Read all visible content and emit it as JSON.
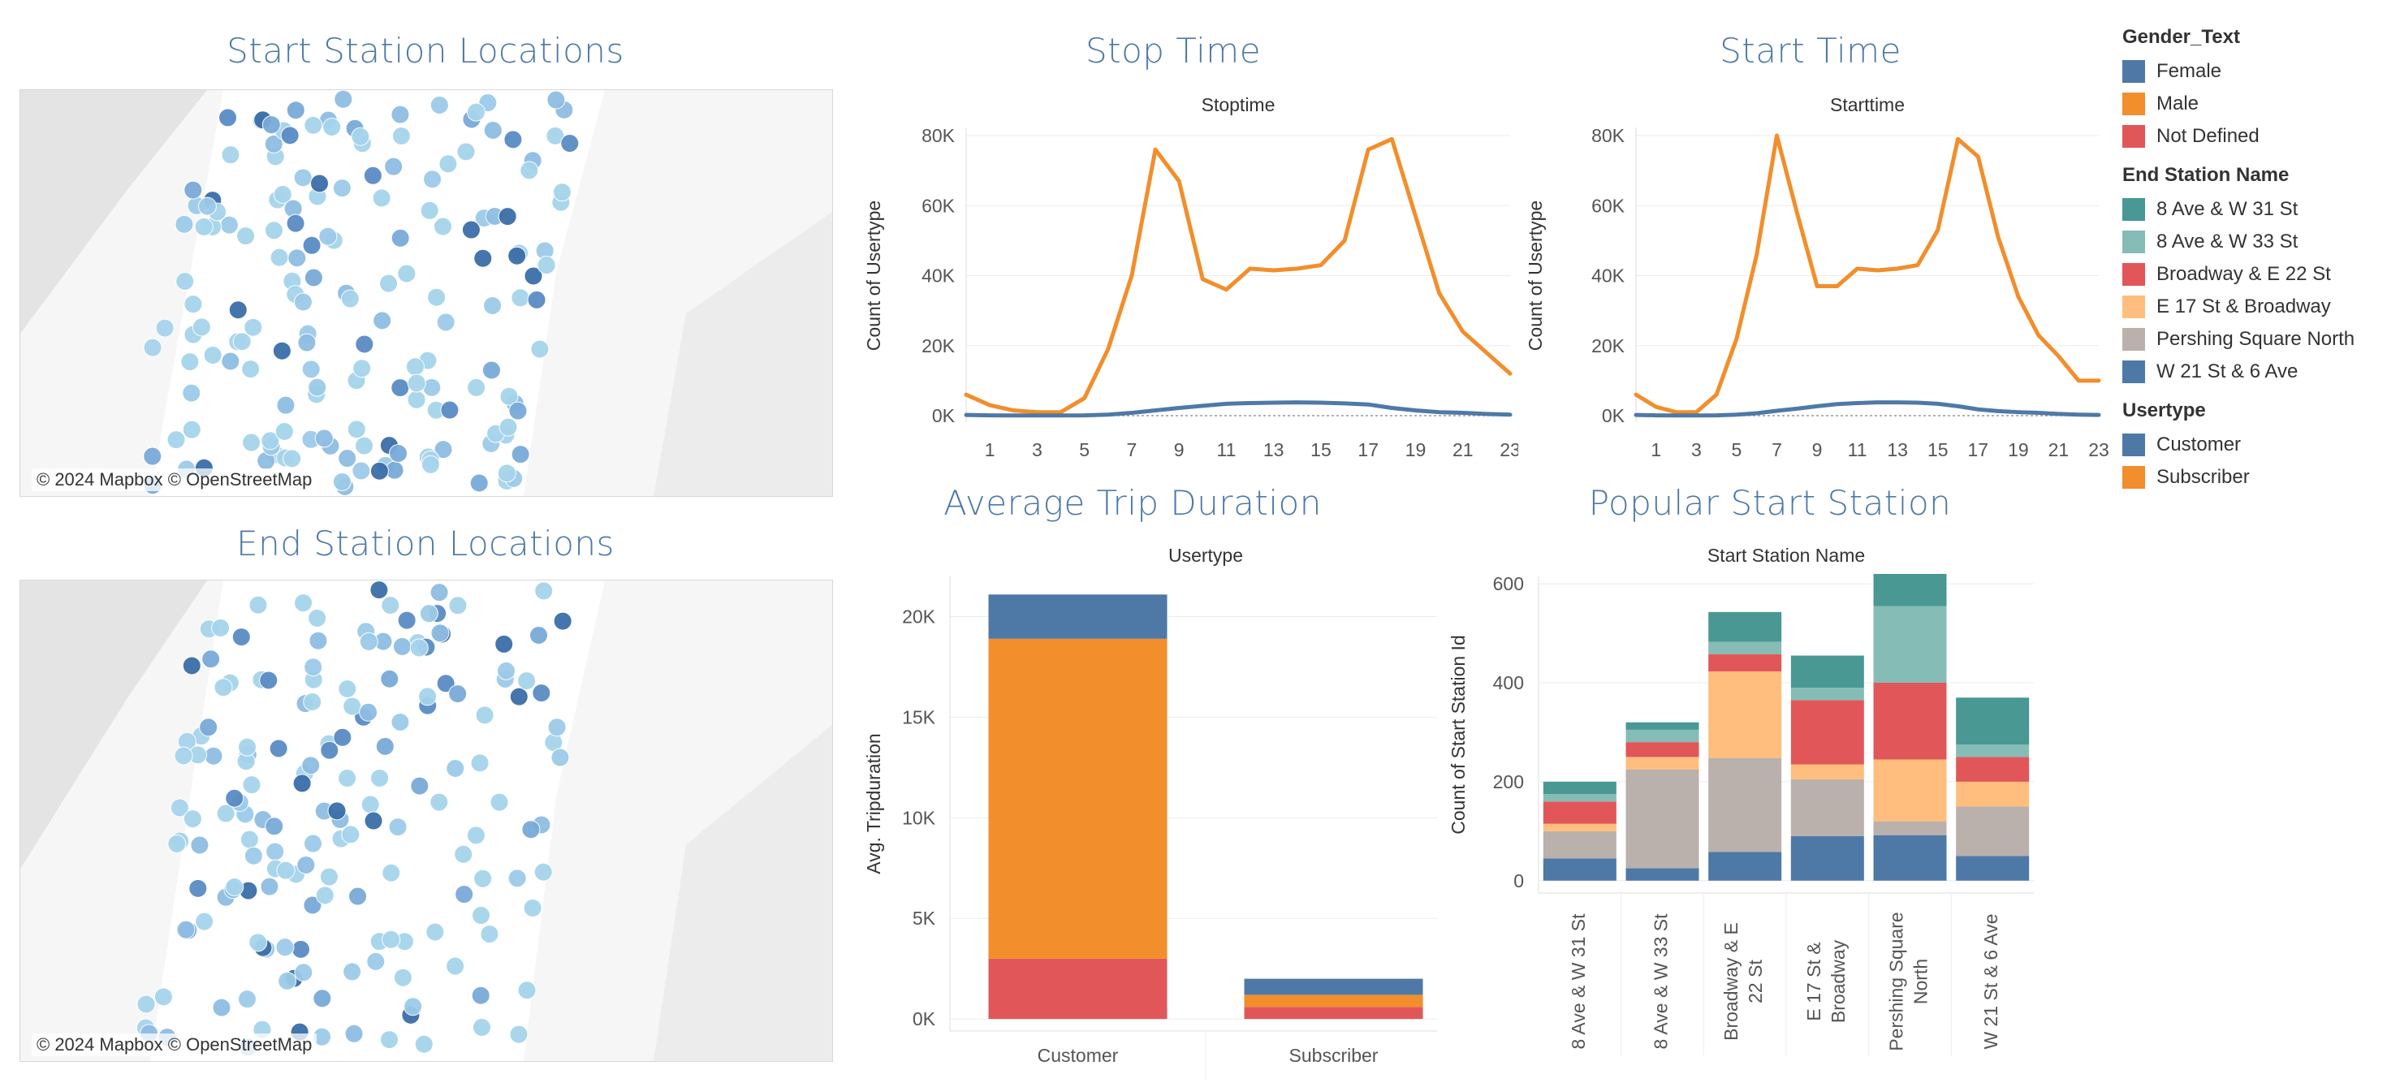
{
  "sheets": {
    "start_map_title": "Start Station Locations",
    "end_map_title": "End Station Locations",
    "stop_time_title": "Stop Time",
    "start_time_title": "Start Time",
    "avg_trip_title": "Average Trip Duration",
    "popular_title": "Popular Start Station"
  },
  "map_attribution": "© 2024 Mapbox © OpenStreetMap",
  "legend": {
    "gender": {
      "title": "Gender_Text",
      "items": [
        {
          "label": "Female",
          "color": "#4e79a7"
        },
        {
          "label": "Male",
          "color": "#f28e2b"
        },
        {
          "label": "Not Defined",
          "color": "#e15759"
        }
      ]
    },
    "end_station": {
      "title": "End Station Name",
      "items": [
        {
          "label": "8 Ave & W 31 St",
          "color": "#499894"
        },
        {
          "label": "8 Ave & W 33 St",
          "color": "#86bcb6"
        },
        {
          "label": "Broadway & E 22 St",
          "color": "#e15759"
        },
        {
          "label": "E 17 St & Broadway",
          "color": "#ffbe7d"
        },
        {
          "label": "Pershing Square North",
          "color": "#bab0ac"
        },
        {
          "label": "W 21 St & 6 Ave",
          "color": "#4e79a7"
        }
      ]
    },
    "usertype": {
      "title": "Usertype",
      "items": [
        {
          "label": "Customer",
          "color": "#4e79a7"
        },
        {
          "label": "Subscriber",
          "color": "#f28e2b"
        }
      ]
    }
  },
  "chart_data": [
    {
      "id": "stoptime",
      "type": "line",
      "title": "Stoptime",
      "xlabel": "",
      "ylabel": "Count of Usertype",
      "x": [
        0,
        1,
        2,
        3,
        4,
        5,
        6,
        7,
        8,
        9,
        10,
        11,
        12,
        13,
        14,
        15,
        16,
        17,
        18,
        19,
        20,
        21,
        22,
        23
      ],
      "xticks": [
        1,
        3,
        5,
        7,
        9,
        11,
        13,
        15,
        17,
        19,
        21,
        23
      ],
      "ylim": [
        0,
        80000
      ],
      "yticks": [
        0,
        20000,
        40000,
        60000,
        80000
      ],
      "ytick_labels": [
        "0K",
        "20K",
        "40K",
        "60K",
        "80K"
      ],
      "series": [
        {
          "color": "#f28e2b",
          "values": [
            6000,
            3000,
            1500,
            1000,
            1000,
            5000,
            19000,
            40000,
            76000,
            67000,
            39000,
            36000,
            42000,
            41500,
            42000,
            43000,
            50000,
            76000,
            79000,
            57000,
            35000,
            24000,
            18000,
            12000
          ]
        },
        {
          "color": "#4e79a7",
          "values": [
            200,
            100,
            50,
            50,
            50,
            100,
            300,
            800,
            1500,
            2200,
            2800,
            3400,
            3600,
            3700,
            3800,
            3700,
            3500,
            3200,
            2200,
            1500,
            1000,
            800,
            500,
            300
          ]
        }
      ]
    },
    {
      "id": "starttime",
      "type": "line",
      "title": "Starttime",
      "xlabel": "",
      "ylabel": "Count of Usertype",
      "x": [
        0,
        1,
        2,
        3,
        4,
        5,
        6,
        7,
        8,
        9,
        10,
        11,
        12,
        13,
        14,
        15,
        16,
        17,
        18,
        19,
        20,
        21,
        22,
        23
      ],
      "xticks": [
        1,
        3,
        5,
        7,
        9,
        11,
        13,
        15,
        17,
        19,
        21,
        23
      ],
      "ylim": [
        0,
        80000
      ],
      "yticks": [
        0,
        20000,
        40000,
        60000,
        80000
      ],
      "ytick_labels": [
        "0K",
        "20K",
        "40K",
        "60K",
        "80K"
      ],
      "series": [
        {
          "color": "#f28e2b",
          "values": [
            6000,
            2500,
            1000,
            1000,
            6000,
            22000,
            46000,
            80000,
            58000,
            37000,
            37000,
            42000,
            41500,
            42000,
            43000,
            53000,
            79000,
            74000,
            51000,
            34000,
            23000,
            17000,
            10000,
            10000
          ]
        },
        {
          "color": "#4e79a7",
          "values": [
            200,
            100,
            50,
            50,
            100,
            300,
            700,
            1400,
            2000,
            2700,
            3300,
            3600,
            3800,
            3800,
            3700,
            3400,
            2700,
            1800,
            1300,
            1000,
            800,
            500,
            300,
            200
          ]
        }
      ]
    },
    {
      "id": "avgtrip",
      "type": "bar",
      "stacked": true,
      "title": "Usertype",
      "xlabel": "",
      "ylabel": "Avg. Tripduration",
      "categories": [
        "Customer",
        "Subscriber"
      ],
      "ylim": [
        -600,
        22000
      ],
      "yticks": [
        0,
        5000,
        10000,
        15000,
        20000
      ],
      "ytick_labels": [
        "0K",
        "5K",
        "10K",
        "15K",
        "20K"
      ],
      "series": [
        {
          "name": "Not Defined",
          "color": "#e15759",
          "values": [
            3000,
            600
          ]
        },
        {
          "name": "Male",
          "color": "#f28e2b",
          "values": [
            15900,
            600
          ]
        },
        {
          "name": "Female",
          "color": "#4e79a7",
          "values": [
            2200,
            800
          ]
        }
      ]
    },
    {
      "id": "popular",
      "type": "bar",
      "stacked": true,
      "title": "Start Station Name",
      "xlabel": "",
      "ylabel": "Count of Start Station Id",
      "categories": [
        "8 Ave & W 31 St",
        "8 Ave & W 33 St",
        "Broadway & E 22 St",
        "E 17 St & Broadway",
        "Pershing Square North",
        "W 21 St & 6 Ave"
      ],
      "category_lines": [
        [
          "8 Ave & W 31 St"
        ],
        [
          "8 Ave & W 33 St"
        ],
        [
          "Broadway & E",
          "22 St"
        ],
        [
          "E 17 St &",
          "Broadway"
        ],
        [
          "Pershing Square",
          "North"
        ],
        [
          "W 21 St & 6 Ave"
        ]
      ],
      "ylim": [
        -25,
        615
      ],
      "yticks": [
        0,
        200,
        400,
        600
      ],
      "ytick_labels": [
        "0",
        "200",
        "400",
        "600"
      ],
      "series": [
        {
          "name": "W 21 St & 6 Ave",
          "color": "#4e79a7",
          "values": [
            45,
            25,
            58,
            90,
            92,
            50
          ]
        },
        {
          "name": "Pershing Square North",
          "color": "#bab0ac",
          "values": [
            55,
            200,
            190,
            115,
            28,
            100
          ]
        },
        {
          "name": "E 17 St & Broadway",
          "color": "#ffbe7d",
          "values": [
            15,
            25,
            175,
            30,
            125,
            50
          ]
        },
        {
          "name": "Broadway & E 22 St",
          "color": "#e15759",
          "values": [
            45,
            30,
            35,
            130,
            155,
            50
          ]
        },
        {
          "name": "8 Ave & W 33 St",
          "color": "#86bcb6",
          "values": [
            15,
            25,
            25,
            25,
            155,
            25
          ]
        },
        {
          "name": "8 Ave & W 31 St",
          "color": "#499894",
          "values": [
            25,
            15,
            60,
            65,
            65,
            95
          ]
        }
      ]
    }
  ]
}
